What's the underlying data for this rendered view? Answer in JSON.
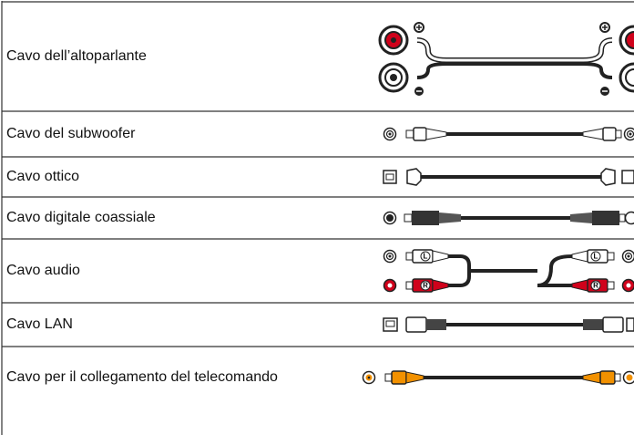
{
  "table": {
    "rows": [
      {
        "label": "Cavo dell’altoparlante"
      },
      {
        "label": "Cavo del subwoofer"
      },
      {
        "label": "Cavo ottico"
      },
      {
        "label": "Cavo digitale coassiale"
      },
      {
        "label": "Cavo audio",
        "channels": [
          "L",
          "R"
        ]
      },
      {
        "label": "Cavo LAN"
      },
      {
        "label": "Cavo per il collegamento del telecomando"
      }
    ]
  }
}
